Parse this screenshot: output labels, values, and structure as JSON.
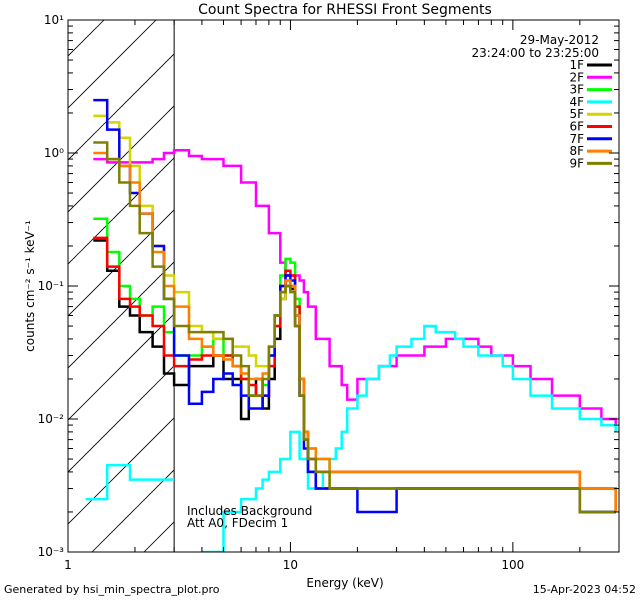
{
  "footer": {
    "left": "Generated by hsi_min_spectra_plot.pro",
    "right": "15-Apr-2023 04:52"
  },
  "chart_data": {
    "type": "line",
    "title": "Count Spectra for RHESSI Front Segments",
    "xlabel": "Energy (keV)",
    "ylabel": "counts cm⁻² s⁻¹ keV⁻¹",
    "xscale": "log",
    "yscale": "log",
    "xlim": [
      1,
      300
    ],
    "ylim": [
      0.001,
      10
    ],
    "xticks": [
      1,
      10,
      100
    ],
    "xtick_labels": [
      "1",
      "10",
      "100"
    ],
    "yticks": [
      0.001,
      0.01,
      0.1,
      1,
      10
    ],
    "ytick_labels": [
      "10⁻³",
      "10⁻²",
      "10⁻¹",
      "10⁰",
      "10¹"
    ],
    "grid": false,
    "legend_position": "top-right",
    "date_label": "29-May-2012",
    "time_label": "23:24:00 to 23:25:00",
    "annotation_lines": [
      "Includes Background",
      "Att A0, FDecim 1"
    ],
    "hatched_region": [
      1,
      3
    ],
    "series": [
      {
        "name": "1F",
        "color": "#000000",
        "x": [
          1.3,
          1.5,
          1.7,
          1.9,
          2.1,
          2.4,
          2.7,
          3.0,
          3.5,
          4,
          4.5,
          5,
          5.5,
          6,
          6.5,
          7,
          7.5,
          8,
          8.5,
          9,
          9.5,
          10,
          10.5,
          11,
          11.5,
          12,
          13,
          15,
          20,
          30,
          50,
          100,
          200,
          290
        ],
        "y": [
          0.22,
          0.13,
          0.07,
          0.06,
          0.045,
          0.035,
          0.022,
          0.018,
          0.025,
          0.025,
          0.03,
          0.02,
          0.02,
          0.01,
          0.015,
          0.02,
          0.012,
          0.02,
          0.04,
          0.08,
          0.1,
          0.095,
          0.05,
          0.015,
          0.007,
          0.004,
          0.003,
          0.003,
          0.003,
          0.003,
          0.003,
          0.003,
          0.002,
          0.002
        ]
      },
      {
        "name": "2F",
        "color": "#ff00ff",
        "x": [
          1.3,
          1.5,
          1.7,
          1.9,
          2.1,
          2.4,
          2.7,
          3.0,
          3.5,
          4,
          5,
          6,
          7,
          8,
          9,
          9.5,
          10,
          10.5,
          11,
          11.5,
          12,
          13,
          15,
          17,
          18,
          20,
          22,
          25,
          30,
          40,
          50,
          60,
          70,
          80,
          100,
          120,
          150,
          200,
          250,
          290
        ],
        "y": [
          0.9,
          0.85,
          0.85,
          0.85,
          0.85,
          0.9,
          1.0,
          1.05,
          0.95,
          0.9,
          0.8,
          0.6,
          0.4,
          0.25,
          0.15,
          0.12,
          0.12,
          0.12,
          0.11,
          0.09,
          0.07,
          0.04,
          0.025,
          0.018,
          0.014,
          0.02,
          0.02,
          0.025,
          0.03,
          0.035,
          0.04,
          0.04,
          0.035,
          0.03,
          0.025,
          0.02,
          0.015,
          0.012,
          0.01,
          0.009
        ]
      },
      {
        "name": "3F",
        "color": "#00ff00",
        "x": [
          1.3,
          1.5,
          1.7,
          1.9,
          2.1,
          2.4,
          2.7,
          3.0,
          3.5,
          4,
          4.5,
          5,
          5.5,
          6,
          6.5,
          7,
          7.5,
          8,
          8.5,
          9,
          9.5,
          10,
          10.5,
          11,
          11.5,
          12,
          13,
          15,
          20,
          30,
          50,
          100,
          200,
          290
        ],
        "y": [
          0.32,
          0.18,
          0.1,
          0.08,
          0.06,
          0.07,
          0.045,
          0.03,
          0.03,
          0.035,
          0.04,
          0.03,
          0.025,
          0.02,
          0.015,
          0.015,
          0.018,
          0.03,
          0.06,
          0.12,
          0.16,
          0.15,
          0.08,
          0.02,
          0.008,
          0.006,
          0.005,
          0.004,
          0.004,
          0.004,
          0.004,
          0.004,
          0.003,
          0.002
        ]
      },
      {
        "name": "4F",
        "color": "#00ffff",
        "x": [
          1.2,
          1.3,
          1.5,
          1.7,
          1.9,
          2.1,
          3.0,
          4,
          5,
          6,
          7,
          7.5,
          8,
          9,
          10,
          11,
          12,
          13,
          14,
          15,
          16,
          17,
          18,
          20,
          22,
          25,
          28,
          30,
          35,
          40,
          45,
          50,
          55,
          60,
          70,
          80,
          90,
          100,
          120,
          150,
          200,
          250,
          290
        ],
        "y": [
          0.0025,
          0.0025,
          0.0045,
          0.0045,
          0.0035,
          0.0035,
          null,
          0.001,
          0.002,
          0.0025,
          0.003,
          0.0035,
          0.004,
          0.005,
          0.008,
          0.005,
          0.003,
          0.003,
          0.004,
          0.005,
          0.006,
          0.008,
          0.012,
          0.015,
          0.02,
          0.025,
          0.03,
          0.035,
          0.04,
          0.05,
          0.045,
          0.045,
          0.04,
          0.035,
          0.03,
          0.03,
          0.025,
          0.02,
          0.015,
          0.012,
          0.01,
          0.009,
          0.008
        ]
      },
      {
        "name": "5F",
        "color": "#d4d400",
        "x": [
          1.3,
          1.5,
          1.7,
          1.9,
          2.1,
          2.4,
          2.7,
          3.0,
          3.5,
          4,
          4.5,
          5,
          5.5,
          6,
          6.5,
          7,
          7.5,
          8,
          8.5,
          9,
          9.5,
          10,
          10.5,
          11,
          11.5,
          12,
          13,
          15,
          20,
          30,
          50,
          100,
          200,
          290
        ],
        "y": [
          1.9,
          1.7,
          1.3,
          0.8,
          0.4,
          0.2,
          0.12,
          0.09,
          0.05,
          0.045,
          0.04,
          0.04,
          0.035,
          0.035,
          0.03,
          0.025,
          0.025,
          0.03,
          0.05,
          0.08,
          0.11,
          0.1,
          0.06,
          0.02,
          0.008,
          0.005,
          0.004,
          0.003,
          0.003,
          0.003,
          0.003,
          0.003,
          0.002,
          0.002
        ]
      },
      {
        "name": "6F",
        "color": "#ff0000",
        "x": [
          1.3,
          1.5,
          1.7,
          1.9,
          2.1,
          2.4,
          2.7,
          3.0,
          3.5,
          4,
          4.5,
          5,
          5.5,
          6,
          6.5,
          7,
          7.5,
          8,
          8.5,
          9,
          9.5,
          10,
          10.5,
          11,
          11.5,
          12,
          13,
          15,
          20,
          30,
          50,
          100,
          200,
          290
        ],
        "y": [
          0.23,
          0.14,
          0.08,
          0.07,
          0.06,
          0.05,
          0.03,
          0.025,
          0.028,
          0.03,
          0.03,
          0.03,
          0.025,
          0.02,
          0.018,
          0.015,
          0.015,
          0.025,
          0.05,
          0.1,
          0.13,
          0.12,
          0.07,
          0.02,
          0.008,
          0.005,
          0.004,
          0.004,
          0.004,
          0.004,
          0.004,
          0.004,
          0.003,
          0.002
        ]
      },
      {
        "name": "7F",
        "color": "#0000ff",
        "x": [
          1.3,
          1.5,
          1.7,
          1.9,
          2.1,
          2.4,
          2.7,
          3.0,
          3.5,
          4,
          4.5,
          5,
          5.5,
          6,
          6.5,
          7,
          7.5,
          8,
          8.5,
          9,
          9.5,
          10,
          10.5,
          11,
          11.5,
          12,
          13,
          15,
          20,
          30,
          50,
          100,
          200,
          290
        ],
        "y": [
          2.5,
          1.5,
          0.8,
          0.5,
          0.35,
          0.2,
          0.08,
          0.03,
          0.013,
          0.016,
          0.02,
          0.022,
          0.018,
          0.015,
          0.012,
          0.012,
          0.015,
          0.03,
          0.06,
          0.1,
          0.12,
          0.11,
          0.06,
          0.015,
          0.006,
          0.004,
          0.003,
          0.003,
          0.002,
          0.003,
          0.003,
          0.003,
          0.002,
          0.002
        ]
      },
      {
        "name": "8F",
        "color": "#ff8000",
        "x": [
          1.3,
          1.5,
          1.7,
          1.9,
          2.1,
          2.4,
          2.7,
          3.0,
          3.5,
          4,
          4.5,
          5,
          5.5,
          6,
          6.5,
          7,
          7.5,
          8,
          8.5,
          9,
          9.5,
          10,
          10.5,
          11,
          11.5,
          12,
          13,
          15,
          20,
          30,
          50,
          100,
          200,
          290
        ],
        "y": [
          1.0,
          0.9,
          0.8,
          0.6,
          0.35,
          0.18,
          0.1,
          0.07,
          0.04,
          0.035,
          0.03,
          0.028,
          0.025,
          0.022,
          0.02,
          0.02,
          0.022,
          0.035,
          0.06,
          0.09,
          0.11,
          0.1,
          0.06,
          0.02,
          0.008,
          0.006,
          0.005,
          0.004,
          0.004,
          0.004,
          0.004,
          0.004,
          0.003,
          0.002
        ]
      },
      {
        "name": "9F",
        "color": "#808000",
        "x": [
          1.3,
          1.5,
          1.7,
          1.9,
          2.1,
          2.4,
          2.7,
          3.0,
          3.5,
          4,
          4.5,
          5,
          5.5,
          6,
          6.5,
          7,
          7.5,
          8,
          8.5,
          9,
          9.5,
          10,
          10.5,
          11,
          11.5,
          12,
          13,
          15,
          20,
          30,
          50,
          100,
          200,
          290
        ],
        "y": [
          1.2,
          0.9,
          0.6,
          0.4,
          0.25,
          0.14,
          0.08,
          0.05,
          0.045,
          0.045,
          0.045,
          0.04,
          0.03,
          0.025,
          0.015,
          0.015,
          0.02,
          0.035,
          0.06,
          0.09,
          0.1,
          0.09,
          0.05,
          0.015,
          0.007,
          0.005,
          0.004,
          0.003,
          0.003,
          0.003,
          0.003,
          0.003,
          0.002,
          0.002
        ]
      }
    ]
  }
}
